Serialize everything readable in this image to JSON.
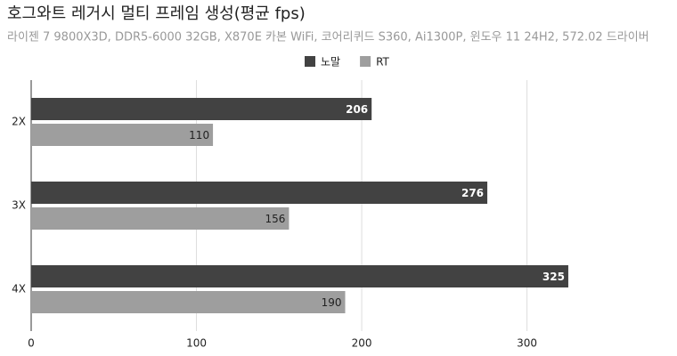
{
  "chart_data": {
    "type": "hbar",
    "title": "호그와트 레거시 멀티 프레임 생성(평균 fps)",
    "subtitle": "라이젠 7 9800X3D, DDR5-6000 32GB, X870E 카본 WiFi, 코어리퀴드 S360, Ai1300P, 윈도우 11 24H2, 572.02 드라이버",
    "categories": [
      "2X",
      "3X",
      "4X"
    ],
    "series": [
      {
        "name": "노말",
        "color": "#424242",
        "label_color": "#ffffff",
        "values": [
          206,
          276,
          325
        ]
      },
      {
        "name": "RT",
        "color": "#9e9e9e",
        "label_color": "#222222",
        "values": [
          110,
          156,
          190
        ]
      }
    ],
    "xlim": [
      0,
      380
    ],
    "xticks": [
      0,
      100,
      200,
      300
    ],
    "grid": true,
    "legend": "top"
  }
}
